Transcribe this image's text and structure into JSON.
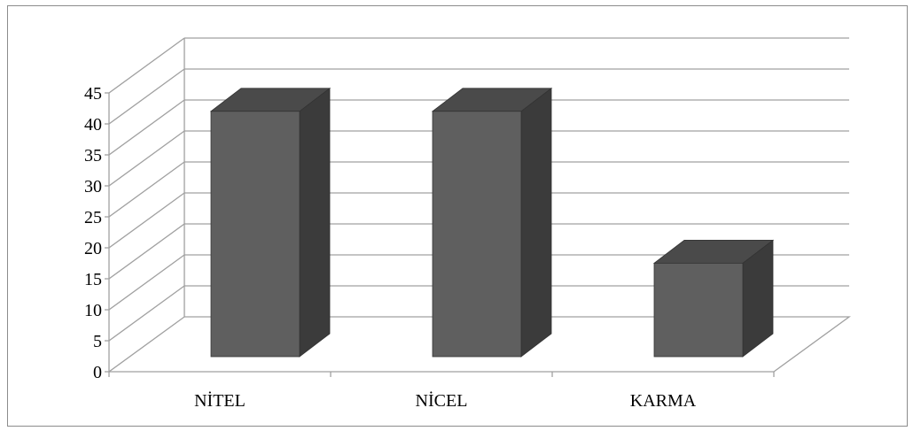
{
  "chart_data": {
    "type": "bar",
    "style": "3d-column",
    "categories": [
      "NİTEL",
      "NİCEL",
      "KARMA"
    ],
    "values": [
      42,
      42,
      16
    ],
    "ylim": [
      0,
      45
    ],
    "yticks": [
      "0",
      "5",
      "10",
      "15",
      "20",
      "25",
      "30",
      "35",
      "40",
      "45"
    ],
    "title": "",
    "xlabel": "",
    "ylabel": "",
    "grid": true,
    "legend": "none",
    "colors": {
      "bar_front": "#5f5f5f",
      "bar_side": "#3b3b3b",
      "bar_top": "#4a4a4a",
      "grid": "#a0a0a0",
      "axis": "#a0a0a0",
      "frame": "#8c8c8c"
    }
  }
}
